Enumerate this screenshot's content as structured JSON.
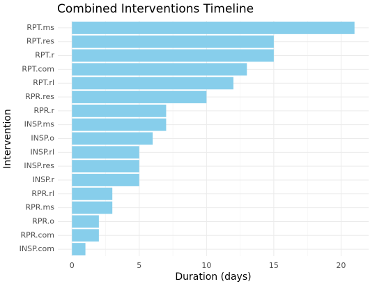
{
  "chart_data": {
    "type": "hbar",
    "title": "Combined Interventions Timeline",
    "x_label": "Duration (days)",
    "y_label": "Intervention",
    "categories": [
      "RPT.ms",
      "RPT.res",
      "RPT.r",
      "RPT.com",
      "RPT.rl",
      "RPR.res",
      "RPR.r",
      "INSP.ms",
      "INSP.o",
      "INSP.rl",
      "INSP.res",
      "INSP.r",
      "RPR.rl",
      "RPR.ms",
      "RPR.o",
      "RPR.com",
      "INSP.com"
    ],
    "values": [
      21,
      15,
      15,
      13,
      12,
      10,
      7,
      7,
      6,
      5,
      5,
      5,
      3,
      3,
      2,
      2,
      1
    ],
    "color": "#87ceeb",
    "xlim": [
      -1.05,
      22.05
    ],
    "xticks": [
      0,
      5,
      10,
      15,
      20
    ],
    "grid": true
  }
}
